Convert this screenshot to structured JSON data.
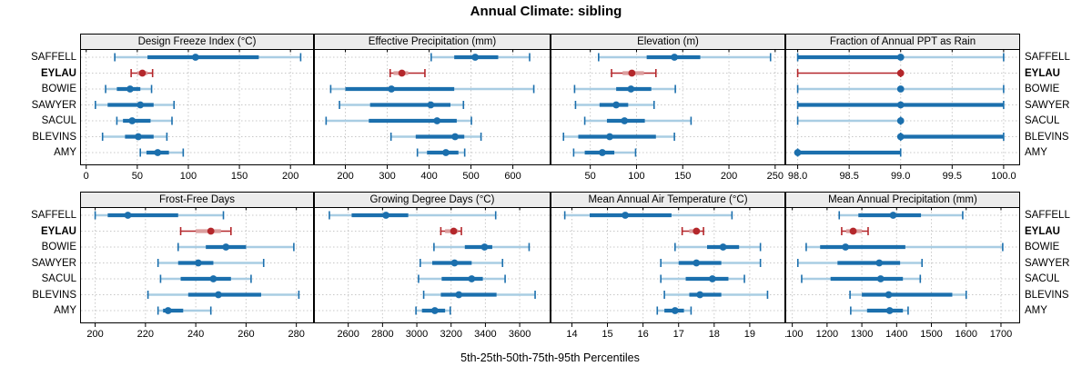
{
  "title": "Annual Climate: sibling",
  "caption": "5th-25th-50th-75th-95th Percentiles",
  "highlight_station": "EYLAU",
  "stations": [
    "SAFFELL",
    "EYLAU",
    "BOWIE",
    "SAWYER",
    "SACUL",
    "BLEVINS",
    "AMY"
  ],
  "percentile_labels": [
    "5th",
    "25th",
    "50th",
    "75th",
    "95th"
  ],
  "colors": {
    "blue": "#1b6fad",
    "light_blue": "#a9cde3",
    "red": "#b4272b",
    "light_red": "#dc9e9e",
    "grid": "#c8c8c8",
    "strip_bg": "#ececec",
    "border": "#000000"
  },
  "chart_data": [
    {
      "type": "dotplot",
      "title": "Design Freeze Index (°C)",
      "xlim": [
        -6,
        223
      ],
      "ticks": [
        0,
        50,
        100,
        150,
        200
      ],
      "tick_labels": [
        "0",
        "50",
        "100",
        "150",
        "200"
      ],
      "series": [
        {
          "name": "SAFFELL",
          "percentiles": [
            28,
            60,
            107,
            169,
            210
          ]
        },
        {
          "name": "EYLAU",
          "percentiles": [
            44,
            50,
            55,
            60,
            65
          ]
        },
        {
          "name": "BOWIE",
          "percentiles": [
            19,
            30,
            43,
            53,
            64
          ]
        },
        {
          "name": "SAWYER",
          "percentiles": [
            9,
            21,
            53,
            66,
            86
          ]
        },
        {
          "name": "SACUL",
          "percentiles": [
            30,
            36,
            45,
            63,
            84
          ]
        },
        {
          "name": "BLEVINS",
          "percentiles": [
            16,
            38,
            51,
            66,
            79
          ]
        },
        {
          "name": "AMY",
          "percentiles": [
            53,
            59,
            70,
            81,
            95
          ]
        }
      ]
    },
    {
      "type": "dotplot",
      "title": "Effective Precipitation (mm)",
      "xlim": [
        125,
        690
      ],
      "ticks": [
        200,
        300,
        400,
        500,
        600
      ],
      "tick_labels": [
        "200",
        "300",
        "400",
        "500",
        "600"
      ],
      "series": [
        {
          "name": "SAFFELL",
          "percentiles": [
            405,
            460,
            510,
            565,
            640
          ]
        },
        {
          "name": "EYLAU",
          "percentiles": [
            307,
            315,
            335,
            350,
            390
          ]
        },
        {
          "name": "BOWIE",
          "percentiles": [
            165,
            200,
            310,
            460,
            650
          ]
        },
        {
          "name": "SAWYER",
          "percentiles": [
            186,
            259,
            404,
            451,
            482
          ]
        },
        {
          "name": "SACUL",
          "percentiles": [
            154,
            256,
            419,
            466,
            501
          ]
        },
        {
          "name": "BLEVINS",
          "percentiles": [
            309,
            368,
            462,
            484,
            524
          ]
        },
        {
          "name": "AMY",
          "percentiles": [
            372,
            395,
            440,
            470,
            485
          ]
        }
      ]
    },
    {
      "type": "dotplot",
      "title": "Elevation (m)",
      "xlim": [
        7,
        261
      ],
      "ticks": [
        50,
        100,
        150,
        200,
        250
      ],
      "tick_labels": [
        "50",
        "100",
        "150",
        "200",
        "250"
      ],
      "series": [
        {
          "name": "SAFFELL",
          "percentiles": [
            59,
            111,
            141,
            169,
            245
          ]
        },
        {
          "name": "EYLAU",
          "percentiles": [
            73,
            85,
            95,
            108,
            121
          ]
        },
        {
          "name": "BOWIE",
          "percentiles": [
            33,
            78,
            94,
            116,
            142
          ]
        },
        {
          "name": "SAWYER",
          "percentiles": [
            34,
            60,
            78,
            91,
            119
          ]
        },
        {
          "name": "SACUL",
          "percentiles": [
            44,
            68,
            87,
            109,
            159
          ]
        },
        {
          "name": "BLEVINS",
          "percentiles": [
            21,
            37,
            71,
            121,
            141
          ]
        },
        {
          "name": "AMY",
          "percentiles": [
            32,
            44,
            63,
            76,
            99
          ]
        }
      ]
    },
    {
      "type": "dotplot",
      "title": "Fraction of Annual PPT as Rain",
      "xlim": [
        97.88,
        100.16
      ],
      "ticks": [
        98,
        98.5,
        99,
        99.5,
        100
      ],
      "tick_labels": [
        "98.0",
        "98.5",
        "99.0",
        "99.5",
        "100.0"
      ],
      "series": [
        {
          "name": "SAFFELL",
          "percentiles": [
            98,
            98,
            99,
            99,
            100
          ]
        },
        {
          "name": "EYLAU",
          "percentiles": [
            98,
            99,
            99,
            99,
            99
          ]
        },
        {
          "name": "BOWIE",
          "percentiles": [
            98,
            99,
            99,
            99,
            100
          ]
        },
        {
          "name": "SAWYER",
          "percentiles": [
            98,
            98,
            99,
            100,
            100
          ]
        },
        {
          "name": "SACUL",
          "percentiles": [
            98,
            99,
            99,
            99,
            99
          ]
        },
        {
          "name": "BLEVINS",
          "percentiles": [
            99,
            99,
            99,
            100,
            100
          ]
        },
        {
          "name": "AMY",
          "percentiles": [
            98,
            98,
            98,
            99,
            99
          ]
        }
      ]
    },
    {
      "type": "dotplot",
      "title": "Frost-Free Days",
      "xlim": [
        194,
        287
      ],
      "ticks": [
        200,
        220,
        240,
        260,
        280
      ],
      "tick_labels": [
        "200",
        "220",
        "240",
        "260",
        "280"
      ],
      "series": [
        {
          "name": "SAFFELL",
          "percentiles": [
            200,
            205,
            213,
            233,
            251
          ]
        },
        {
          "name": "EYLAU",
          "percentiles": [
            234,
            240,
            246,
            250,
            254
          ]
        },
        {
          "name": "BOWIE",
          "percentiles": [
            233,
            244,
            252,
            260,
            279
          ]
        },
        {
          "name": "SAWYER",
          "percentiles": [
            225,
            233,
            241,
            247,
            267
          ]
        },
        {
          "name": "SACUL",
          "percentiles": [
            226,
            234,
            247,
            254,
            262
          ]
        },
        {
          "name": "BLEVINS",
          "percentiles": [
            221,
            237,
            249,
            266,
            281
          ]
        },
        {
          "name": "AMY",
          "percentiles": [
            225,
            227,
            229,
            235,
            246
          ]
        }
      ]
    },
    {
      "type": "dotplot",
      "title": "Growing Degree Days (°C)",
      "xlim": [
        2400,
        3780
      ],
      "ticks": [
        2600,
        2800,
        3000,
        3200,
        3400,
        3600
      ],
      "tick_labels": [
        "2600",
        "2800",
        "3000",
        "3200",
        "3400",
        "3600"
      ],
      "series": [
        {
          "name": "SAFFELL",
          "percentiles": [
            2490,
            2620,
            2820,
            2950,
            3460
          ]
        },
        {
          "name": "EYLAU",
          "percentiles": [
            3140,
            3165,
            3215,
            3240,
            3260
          ]
        },
        {
          "name": "BOWIE",
          "percentiles": [
            3100,
            3280,
            3395,
            3440,
            3655
          ]
        },
        {
          "name": "SAWYER",
          "percentiles": [
            3020,
            3090,
            3220,
            3320,
            3500
          ]
        },
        {
          "name": "SACUL",
          "percentiles": [
            3010,
            3145,
            3320,
            3385,
            3515
          ]
        },
        {
          "name": "BLEVINS",
          "percentiles": [
            3040,
            3140,
            3245,
            3465,
            3690
          ]
        },
        {
          "name": "AMY",
          "percentiles": [
            2995,
            3030,
            3105,
            3165,
            3195
          ]
        }
      ]
    },
    {
      "type": "dotplot",
      "title": "Mean Annual Air Temperature (°C)",
      "xlim": [
        13.4,
        20.0
      ],
      "ticks": [
        14,
        15,
        16,
        17,
        18,
        19
      ],
      "tick_labels": [
        "14",
        "15",
        "16",
        "17",
        "18",
        "19"
      ],
      "series": [
        {
          "name": "SAFFELL",
          "percentiles": [
            13.8,
            14.5,
            15.5,
            16.8,
            18.5
          ]
        },
        {
          "name": "EYLAU",
          "percentiles": [
            17.1,
            17.3,
            17.5,
            17.6,
            17.7
          ]
        },
        {
          "name": "BOWIE",
          "percentiles": [
            16.9,
            17.8,
            18.25,
            18.7,
            19.3
          ]
        },
        {
          "name": "SAWYER",
          "percentiles": [
            16.5,
            17.0,
            17.5,
            18.2,
            19.3
          ]
        },
        {
          "name": "SACUL",
          "percentiles": [
            16.5,
            17.2,
            17.95,
            18.4,
            18.85
          ]
        },
        {
          "name": "BLEVINS",
          "percentiles": [
            16.6,
            17.3,
            17.6,
            18.2,
            19.5
          ]
        },
        {
          "name": "AMY",
          "percentiles": [
            16.4,
            16.6,
            16.9,
            17.15,
            17.35
          ]
        }
      ]
    },
    {
      "type": "dotplot",
      "title": "Mean Annual Precipitation (mm)",
      "xlim": [
        1080,
        1755
      ],
      "ticks": [
        1100,
        1200,
        1300,
        1400,
        1500,
        1600,
        1700
      ],
      "tick_labels": [
        "1100",
        "1200",
        "1300",
        "1400",
        "1500",
        "1600",
        "1700"
      ],
      "series": [
        {
          "name": "SAFFELL",
          "percentiles": [
            1235,
            1290,
            1390,
            1470,
            1590
          ]
        },
        {
          "name": "EYLAU",
          "percentiles": [
            1242,
            1255,
            1275,
            1300,
            1318
          ]
        },
        {
          "name": "BOWIE",
          "percentiles": [
            1140,
            1180,
            1253,
            1425,
            1705
          ]
        },
        {
          "name": "SAWYER",
          "percentiles": [
            1116,
            1230,
            1350,
            1410,
            1473
          ]
        },
        {
          "name": "SACUL",
          "percentiles": [
            1127,
            1210,
            1354,
            1418,
            1468
          ]
        },
        {
          "name": "BLEVINS",
          "percentiles": [
            1266,
            1300,
            1377,
            1560,
            1600
          ]
        },
        {
          "name": "AMY",
          "percentiles": [
            1268,
            1315,
            1380,
            1418,
            1433
          ]
        }
      ]
    }
  ]
}
